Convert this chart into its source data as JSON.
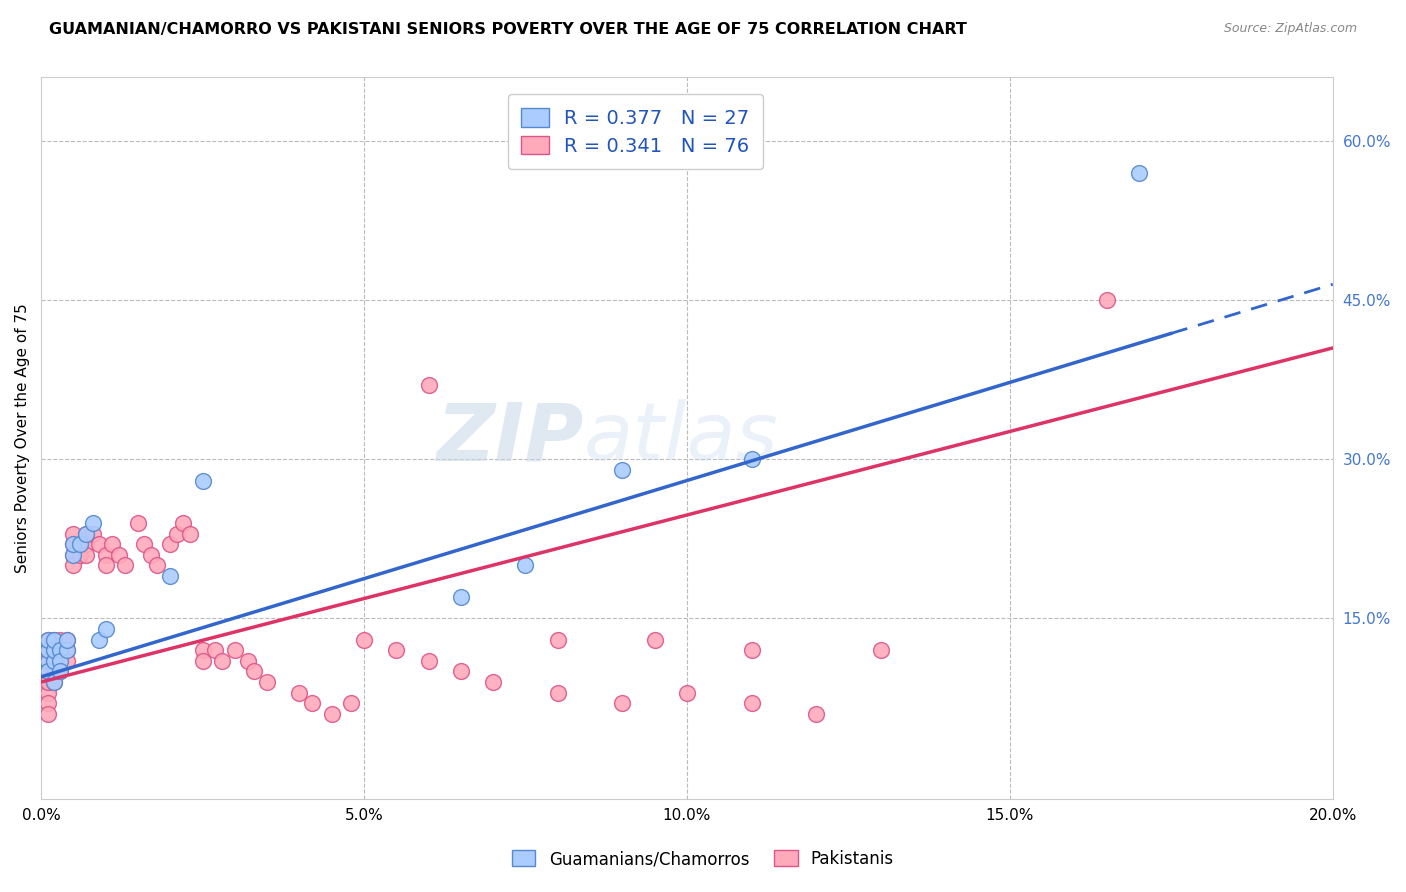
{
  "title": "GUAMANIAN/CHAMORRO VS PAKISTANI SENIORS POVERTY OVER THE AGE OF 75 CORRELATION CHART",
  "source": "Source: ZipAtlas.com",
  "ylabel": "Seniors Poverty Over the Age of 75",
  "xlim": [
    0.0,
    0.2
  ],
  "ylim": [
    -0.02,
    0.66
  ],
  "xticks": [
    0.0,
    0.05,
    0.1,
    0.15,
    0.2
  ],
  "xticklabels": [
    "0.0%",
    "5.0%",
    "10.0%",
    "15.0%",
    "20.0%"
  ],
  "yticks_right": [
    0.15,
    0.3,
    0.45,
    0.6
  ],
  "yticklabels_right": [
    "15.0%",
    "30.0%",
    "45.0%",
    "60.0%"
  ],
  "guam_color": "#aaccff",
  "pak_color": "#ffaabb",
  "guam_edge": "#5588cc",
  "pak_edge": "#dd5588",
  "line_guam_color": "#3366cc",
  "line_pak_color": "#dd3366",
  "R_guam": 0.377,
  "N_guam": 27,
  "R_pak": 0.341,
  "N_pak": 76,
  "watermark": "ZIPatlas",
  "background_color": "#ffffff",
  "grid_color": "#bbbbbb",
  "line_guam_x0": 0.0,
  "line_guam_y0": 0.095,
  "line_guam_x1": 0.2,
  "line_guam_y1": 0.465,
  "line_guam_solid_end": 0.175,
  "line_pak_x0": 0.0,
  "line_pak_y0": 0.09,
  "line_pak_x1": 0.2,
  "line_pak_y1": 0.405,
  "guam_x": [
    0.001,
    0.001,
    0.001,
    0.001,
    0.002,
    0.002,
    0.002,
    0.002,
    0.003,
    0.003,
    0.003,
    0.004,
    0.004,
    0.005,
    0.005,
    0.006,
    0.007,
    0.008,
    0.009,
    0.01,
    0.02,
    0.025,
    0.065,
    0.075,
    0.09,
    0.11,
    0.17
  ],
  "guam_y": [
    0.11,
    0.12,
    0.13,
    0.1,
    0.11,
    0.12,
    0.13,
    0.09,
    0.12,
    0.11,
    0.1,
    0.12,
    0.13,
    0.21,
    0.22,
    0.22,
    0.23,
    0.24,
    0.13,
    0.14,
    0.19,
    0.28,
    0.17,
    0.2,
    0.29,
    0.3,
    0.57
  ],
  "pak_x": [
    0.001,
    0.001,
    0.001,
    0.001,
    0.001,
    0.001,
    0.001,
    0.001,
    0.001,
    0.001,
    0.001,
    0.001,
    0.002,
    0.002,
    0.002,
    0.002,
    0.002,
    0.003,
    0.003,
    0.003,
    0.003,
    0.004,
    0.004,
    0.004,
    0.005,
    0.005,
    0.005,
    0.005,
    0.006,
    0.006,
    0.007,
    0.007,
    0.007,
    0.008,
    0.009,
    0.01,
    0.01,
    0.011,
    0.012,
    0.013,
    0.015,
    0.016,
    0.017,
    0.018,
    0.02,
    0.021,
    0.022,
    0.023,
    0.025,
    0.025,
    0.027,
    0.028,
    0.03,
    0.032,
    0.033,
    0.035,
    0.04,
    0.042,
    0.045,
    0.048,
    0.05,
    0.055,
    0.06,
    0.065,
    0.07,
    0.08,
    0.09,
    0.1,
    0.11,
    0.12,
    0.06,
    0.08,
    0.095,
    0.11,
    0.13,
    0.165
  ],
  "pak_y": [
    0.1,
    0.11,
    0.12,
    0.13,
    0.09,
    0.1,
    0.11,
    0.12,
    0.08,
    0.09,
    0.07,
    0.06,
    0.13,
    0.12,
    0.11,
    0.1,
    0.09,
    0.13,
    0.12,
    0.11,
    0.1,
    0.13,
    0.12,
    0.11,
    0.22,
    0.23,
    0.21,
    0.2,
    0.22,
    0.21,
    0.23,
    0.22,
    0.21,
    0.23,
    0.22,
    0.21,
    0.2,
    0.22,
    0.21,
    0.2,
    0.24,
    0.22,
    0.21,
    0.2,
    0.22,
    0.23,
    0.24,
    0.23,
    0.12,
    0.11,
    0.12,
    0.11,
    0.12,
    0.11,
    0.1,
    0.09,
    0.08,
    0.07,
    0.06,
    0.07,
    0.13,
    0.12,
    0.11,
    0.1,
    0.09,
    0.08,
    0.07,
    0.08,
    0.07,
    0.06,
    0.37,
    0.13,
    0.13,
    0.12,
    0.12,
    0.45
  ]
}
